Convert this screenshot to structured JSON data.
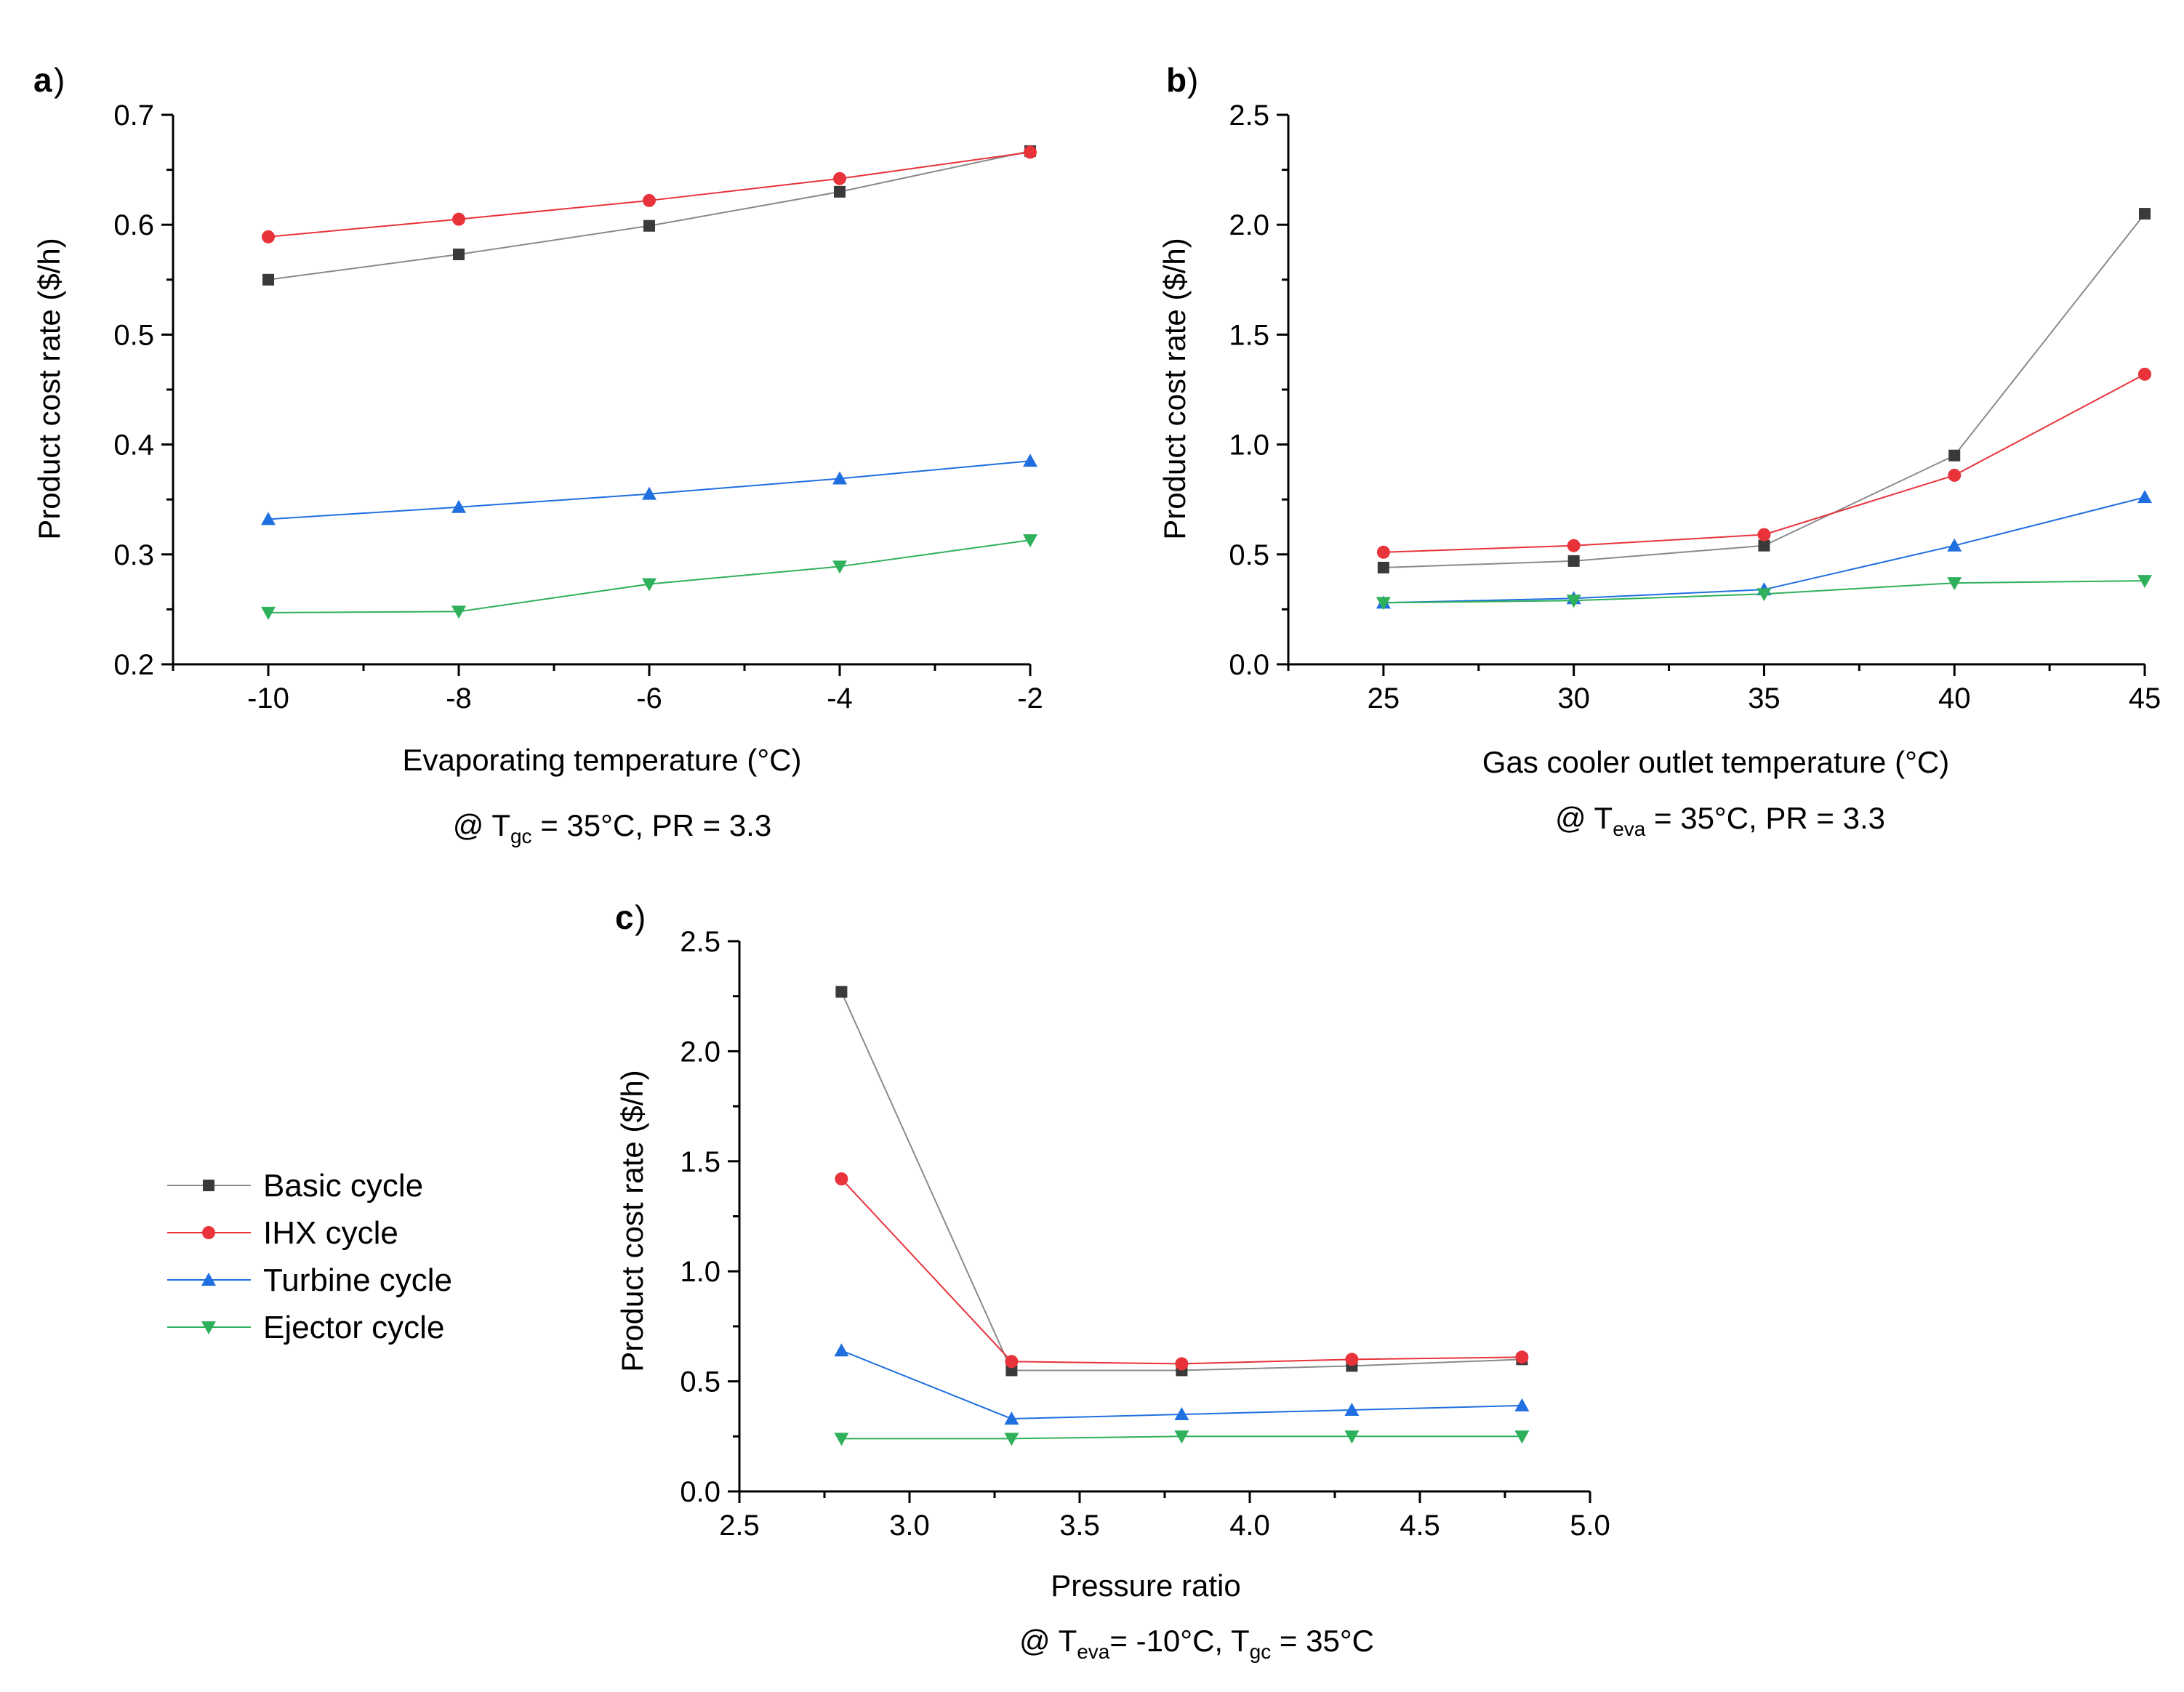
{
  "series_styles": [
    {
      "name": "Basic cycle",
      "color": "#3a3a3a",
      "line_color": "#8a8a8a",
      "marker": "square"
    },
    {
      "name": "IHX cycle",
      "color": "#e8333a",
      "line_color": "#e8333a",
      "marker": "circle"
    },
    {
      "name": "Turbine cycle",
      "color": "#1f6fe0",
      "line_color": "#1f6fe0",
      "marker": "triangle-up"
    },
    {
      "name": "Ejector cycle",
      "color": "#2fb05a",
      "line_color": "#2fb05a",
      "marker": "triangle-down"
    }
  ],
  "legend": {
    "items": [
      "Basic cycle",
      "IHX cycle",
      "Turbine cycle",
      "Ejector cycle"
    ]
  },
  "chart_data": [
    {
      "type": "line",
      "panel": "a",
      "xlabel": "Evaporating temperature (°C)",
      "ylabel": "Product cost rate ($/h)",
      "x": [
        -10,
        -8,
        -6,
        -4,
        -2
      ],
      "xlim": [
        -11,
        -2
      ],
      "ylim": [
        0.2,
        0.7
      ],
      "xticks": [
        -10,
        -8,
        -6,
        -4,
        -2
      ],
      "xtick_labels": [
        "-10",
        "-8",
        "-6",
        "-4",
        "-2"
      ],
      "yticks": [
        0.2,
        0.3,
        0.4,
        0.5,
        0.6,
        0.7
      ],
      "ytick_labels": [
        "0.2",
        "0.3",
        "0.4",
        "0.5",
        "0.6",
        "0.7"
      ],
      "condition": {
        "prefix": "@ T",
        "sub1": "gc",
        "rest1": " = 35°C, PR = 3.3",
        "sub2": "",
        "rest2": ""
      },
      "series": [
        {
          "name": "Basic cycle",
          "values": [
            0.55,
            0.573,
            0.599,
            0.63,
            0.667
          ]
        },
        {
          "name": "IHX cycle",
          "values": [
            0.589,
            0.605,
            0.622,
            0.642,
            0.666
          ]
        },
        {
          "name": "Turbine cycle",
          "values": [
            0.332,
            0.343,
            0.355,
            0.369,
            0.385
          ]
        },
        {
          "name": "Ejector cycle",
          "values": [
            0.247,
            0.248,
            0.273,
            0.289,
            0.313
          ]
        }
      ]
    },
    {
      "type": "line",
      "panel": "b",
      "xlabel": "Gas cooler outlet temperature (°C)",
      "ylabel": "Product cost rate ($/h)",
      "x": [
        25,
        30,
        35,
        40,
        45
      ],
      "xlim": [
        22.5,
        45
      ],
      "ylim": [
        0,
        2.5
      ],
      "xticks": [
        25,
        30,
        35,
        40,
        45
      ],
      "xtick_labels": [
        "25",
        "30",
        "35",
        "40",
        "45"
      ],
      "yticks": [
        0,
        0.5,
        1.0,
        1.5,
        2.0,
        2.5
      ],
      "ytick_labels": [
        "0.0",
        "0.5",
        "1.0",
        "1.5",
        "2.0",
        "2.5"
      ],
      "condition": {
        "prefix": "@ T",
        "sub1": "eva",
        "rest1": " = 35°C, PR = 3.3",
        "sub2": "",
        "rest2": ""
      },
      "series": [
        {
          "name": "Basic cycle",
          "values": [
            0.44,
            0.47,
            0.54,
            0.95,
            2.05
          ]
        },
        {
          "name": "IHX cycle",
          "values": [
            0.51,
            0.54,
            0.59,
            0.86,
            1.32
          ]
        },
        {
          "name": "Turbine cycle",
          "values": [
            0.28,
            0.3,
            0.34,
            0.54,
            0.76
          ]
        },
        {
          "name": "Ejector cycle",
          "values": [
            0.28,
            0.29,
            0.32,
            0.37,
            0.38
          ]
        }
      ]
    },
    {
      "type": "line",
      "panel": "c",
      "xlabel": "Pressure ratio",
      "ylabel": "Product cost rate ($/h)",
      "x": [
        2.8,
        3.3,
        3.8,
        4.3,
        4.8
      ],
      "xlim": [
        2.5,
        5.0
      ],
      "ylim": [
        0,
        2.5
      ],
      "xticks": [
        2.5,
        3.0,
        3.5,
        4.0,
        4.5,
        5.0
      ],
      "xtick_labels": [
        "2.5",
        "3.0",
        "3.5",
        "4.0",
        "4.5",
        "5.0"
      ],
      "yticks": [
        0,
        0.5,
        1.0,
        1.5,
        2.0,
        2.5
      ],
      "ytick_labels": [
        "0.0",
        "0.5",
        "1.0",
        "1.5",
        "2.0",
        "2.5"
      ],
      "condition": {
        "prefix": "@ T",
        "sub1": "eva",
        "rest1": "= -10°C, T",
        "sub2": "gc",
        "rest2": " = 35°C"
      },
      "series": [
        {
          "name": "Basic cycle",
          "values": [
            2.27,
            0.55,
            0.55,
            0.57,
            0.6
          ]
        },
        {
          "name": "IHX cycle",
          "values": [
            1.42,
            0.59,
            0.58,
            0.6,
            0.61
          ]
        },
        {
          "name": "Turbine cycle",
          "values": [
            0.64,
            0.33,
            0.35,
            0.37,
            0.39
          ]
        },
        {
          "name": "Ejector cycle",
          "values": [
            0.24,
            0.24,
            0.25,
            0.25,
            0.25
          ]
        }
      ]
    }
  ]
}
